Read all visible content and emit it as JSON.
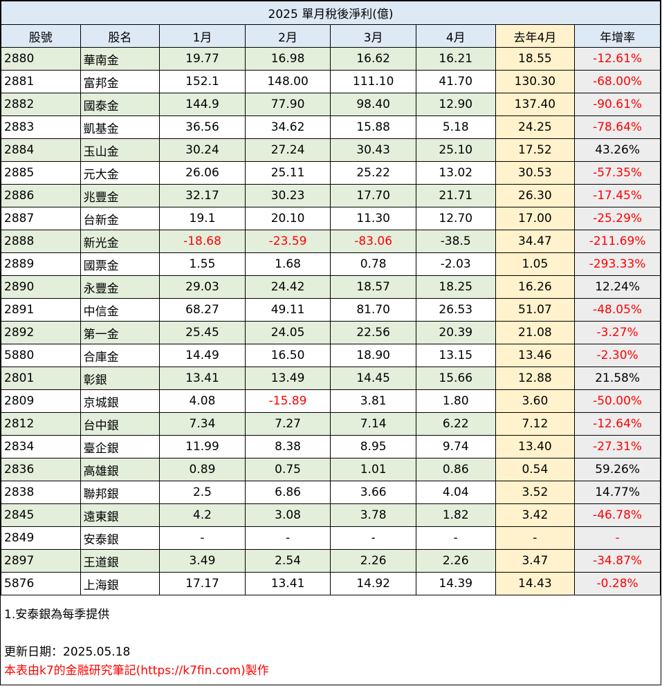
{
  "title": "2025 單月稅後淨利(億)",
  "headers": [
    "股號",
    "股名",
    "1月",
    "2月",
    "3月",
    "4月",
    "去年4月",
    "年增率"
  ],
  "rows": [
    {
      "code": "2880",
      "name": "華南金",
      "m1": "19.77",
      "m2": "16.98",
      "m3": "16.62",
      "m4": "16.21",
      "prev": "18.55",
      "yoy": "-12.61%"
    },
    {
      "code": "2881",
      "name": "富邦金",
      "m1": "152.1",
      "m2": "148.00",
      "m3": "111.10",
      "m4": "41.70",
      "prev": "130.30",
      "yoy": "-68.00%"
    },
    {
      "code": "2882",
      "name": "國泰金",
      "m1": "144.9",
      "m2": "77.90",
      "m3": "98.40",
      "m4": "12.90",
      "prev": "137.40",
      "yoy": "-90.61%"
    },
    {
      "code": "2883",
      "name": "凱基金",
      "m1": "36.56",
      "m2": "34.62",
      "m3": "15.88",
      "m4": "5.18",
      "prev": "24.25",
      "yoy": "-78.64%"
    },
    {
      "code": "2884",
      "name": "玉山金",
      "m1": "30.24",
      "m2": "27.24",
      "m3": "30.43",
      "m4": "25.10",
      "prev": "17.52",
      "yoy": "43.26%"
    },
    {
      "code": "2885",
      "name": "元大金",
      "m1": "26.06",
      "m2": "25.11",
      "m3": "25.22",
      "m4": "13.02",
      "prev": "30.53",
      "yoy": "-57.35%"
    },
    {
      "code": "2886",
      "name": "兆豐金",
      "m1": "32.17",
      "m2": "30.23",
      "m3": "17.70",
      "m4": "21.71",
      "prev": "26.30",
      "yoy": "-17.45%"
    },
    {
      "code": "2887",
      "name": "台新金",
      "m1": "19.1",
      "m2": "20.10",
      "m3": "11.30",
      "m4": "12.70",
      "prev": "17.00",
      "yoy": "-25.29%"
    },
    {
      "code": "2888",
      "name": "新光金",
      "m1": "-18.68",
      "m2": "-23.59",
      "m3": "-83.06",
      "m4": "-38.5",
      "prev": "34.47",
      "yoy": "-211.69%",
      "red": [
        "m1",
        "m2",
        "m3",
        "yoy"
      ]
    },
    {
      "code": "2889",
      "name": "國票金",
      "m1": "1.55",
      "m2": "1.68",
      "m3": "0.78",
      "m4": "-2.03",
      "prev": "1.05",
      "yoy": "-293.33%"
    },
    {
      "code": "2890",
      "name": "永豐金",
      "m1": "29.03",
      "m2": "24.42",
      "m3": "18.57",
      "m4": "18.25",
      "prev": "16.26",
      "yoy": "12.24%"
    },
    {
      "code": "2891",
      "name": "中信金",
      "m1": "68.27",
      "m2": "49.11",
      "m3": "81.70",
      "m4": "26.53",
      "prev": "51.07",
      "yoy": "-48.05%"
    },
    {
      "code": "2892",
      "name": "第一金",
      "m1": "25.45",
      "m2": "24.05",
      "m3": "22.56",
      "m4": "20.39",
      "prev": "21.08",
      "yoy": "-3.27%"
    },
    {
      "code": "5880",
      "name": "合庫金",
      "m1": "14.49",
      "m2": "16.50",
      "m3": "18.90",
      "m4": "13.15",
      "prev": "13.46",
      "yoy": "-2.30%"
    },
    {
      "code": "2801",
      "name": "彰銀",
      "m1": "13.41",
      "m2": "13.49",
      "m3": "14.45",
      "m4": "15.66",
      "prev": "12.88",
      "yoy": "21.58%"
    },
    {
      "code": "2809",
      "name": "京城銀",
      "m1": "4.08",
      "m2": "-15.89",
      "m3": "3.81",
      "m4": "1.80",
      "prev": "3.60",
      "yoy": "-50.00%",
      "red": [
        "m2",
        "yoy"
      ]
    },
    {
      "code": "2812",
      "name": "台中銀",
      "m1": "7.34",
      "m2": "7.27",
      "m3": "7.14",
      "m4": "6.22",
      "prev": "7.12",
      "yoy": "-12.64%"
    },
    {
      "code": "2834",
      "name": "臺企銀",
      "m1": "11.99",
      "m2": "8.38",
      "m3": "8.95",
      "m4": "9.74",
      "prev": "13.40",
      "yoy": "-27.31%"
    },
    {
      "code": "2836",
      "name": "高雄銀",
      "m1": "0.89",
      "m2": "0.75",
      "m3": "1.01",
      "m4": "0.86",
      "prev": "0.54",
      "yoy": "59.26%"
    },
    {
      "code": "2838",
      "name": "聯邦銀",
      "m1": "2.5",
      "m2": "6.86",
      "m3": "3.66",
      "m4": "4.04",
      "prev": "3.52",
      "yoy": "14.77%"
    },
    {
      "code": "2845",
      "name": "遠東銀",
      "m1": "4.2",
      "m2": "3.08",
      "m3": "3.78",
      "m4": "1.82",
      "prev": "3.42",
      "yoy": "-46.78%"
    },
    {
      "code": "2849",
      "name": "安泰銀",
      "m1": "-",
      "m2": "-",
      "m3": "-",
      "m4": "-",
      "prev": "-",
      "yoy": "-"
    },
    {
      "code": "2897",
      "name": "王道銀",
      "m1": "3.49",
      "m2": "2.54",
      "m3": "2.26",
      "m4": "2.26",
      "prev": "3.47",
      "yoy": "-34.87%"
    },
    {
      "code": "5876",
      "name": "上海銀",
      "m1": "17.17",
      "m2": "13.41",
      "m3": "14.92",
      "m4": "14.39",
      "prev": "14.43",
      "yoy": "-0.28%"
    }
  ],
  "note": "1.安泰銀為每季提供",
  "update": "更新日期：2025.05.18",
  "credit": "本表由k7的金融研究筆記(https://k7fin.com)製作",
  "colors": {
    "header_bg": "#dde9f5",
    "alt_row_bg": "#e3eedb",
    "highlight_col_bg": "#fff2cc",
    "yoy_col_bg": "#ededed",
    "negative": "#ff0000"
  }
}
